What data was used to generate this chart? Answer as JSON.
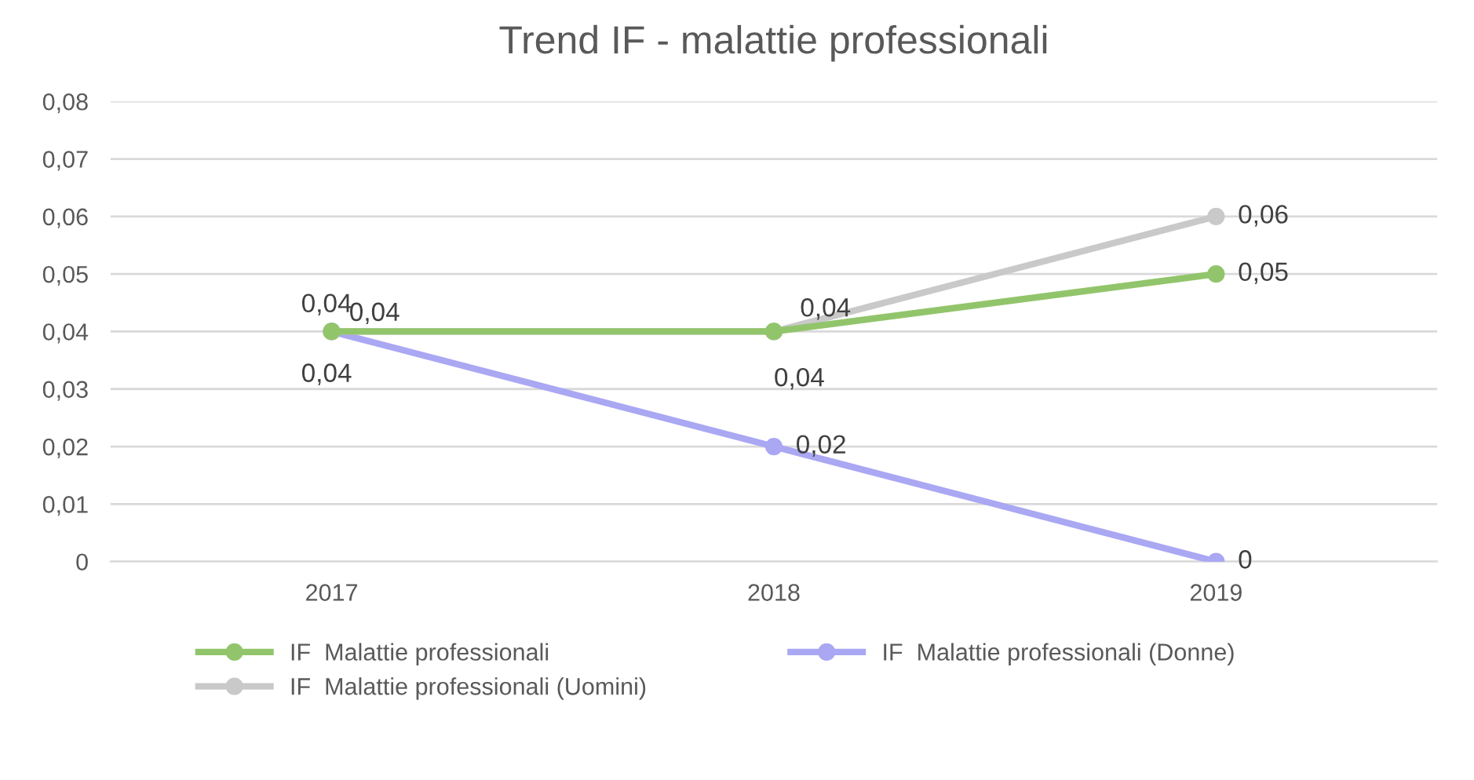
{
  "chart_data": {
    "type": "line",
    "title": "Trend IF - malattie professionali",
    "categories": [
      "2017",
      "2018",
      "2019"
    ],
    "series": [
      {
        "name": "IF  Malattie professionali",
        "color": "#92c56b",
        "values": [
          0.04,
          0.04,
          0.05
        ],
        "value_labels": [
          "0,04",
          "0,04",
          "0,05"
        ]
      },
      {
        "name": "IF  Malattie professionali (Uomini)",
        "color": "#c9c9c9",
        "values": [
          0.04,
          0.04,
          0.06
        ],
        "value_labels": [
          "0,04",
          "0,04",
          "0,06"
        ]
      },
      {
        "name": "IF  Malattie professionali (Donne)",
        "color": "#aaa7f3",
        "values": [
          0.04,
          0.02,
          0
        ],
        "value_labels": [
          "0,04",
          "0,02",
          "0"
        ]
      }
    ],
    "ylim": [
      0,
      0.08
    ],
    "yticks": [
      0,
      {
        "value": 0.01,
        "label": "0,01"
      },
      {
        "value": 0.02,
        "label": "0,02"
      },
      {
        "value": 0.03,
        "label": "0,03"
      },
      {
        "value": 0.04,
        "label": "0,04"
      },
      {
        "value": 0.05,
        "label": "0,05"
      },
      {
        "value": 0.06,
        "label": "0,06"
      },
      {
        "value": 0.07,
        "label": "0,07"
      },
      {
        "value": 0.08,
        "label": "0,08"
      }
    ],
    "grid": "y",
    "legend": "bottom",
    "marker": "circle",
    "line_style": "solid"
  }
}
